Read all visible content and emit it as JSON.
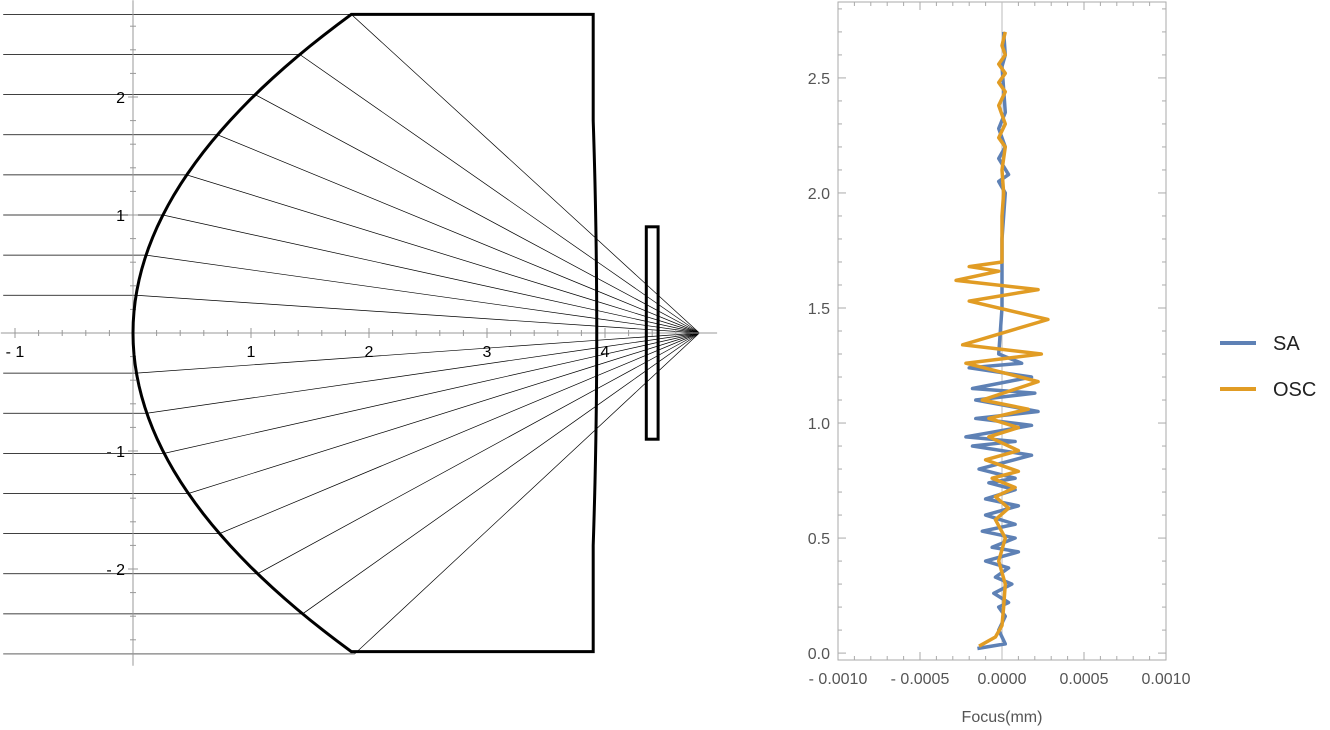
{
  "chart_data": [
    {
      "type": "diagram",
      "xlim": [
        -1,
        4.8
      ],
      "ylim": [
        -2.7,
        2.7
      ],
      "x_ticks": [
        {
          "value": -1,
          "label": "- 1"
        },
        {
          "value": 1,
          "label": "1"
        },
        {
          "value": 2,
          "label": "2"
        },
        {
          "value": 3,
          "label": "3"
        },
        {
          "value": 4,
          "label": "4"
        }
      ],
      "y_ticks": [
        {
          "value": 2,
          "label": "2"
        },
        {
          "value": 1,
          "label": "1"
        },
        {
          "value": -1,
          "label": "- 1"
        },
        {
          "value": -2,
          "label": "- 2"
        }
      ],
      "lens": {
        "front_vertex_x": 0,
        "front_edge_x": 1.85,
        "back_x": 3.9,
        "half_height": 2.7
      },
      "plate": {
        "x_min": 4.35,
        "x_max": 4.45,
        "y_min": -0.9,
        "y_max": 0.9
      },
      "focus": {
        "x": 4.8,
        "y": 0
      },
      "ray_heights": [
        2.7,
        2.36,
        2.02,
        1.68,
        1.34,
        1.0,
        0.66,
        0.32,
        -0.34,
        -0.68,
        -1.02,
        -1.36,
        -1.7,
        -2.04,
        -2.38,
        -2.72
      ]
    },
    {
      "type": "line",
      "xlabel": "Focus(mm)",
      "xlim": [
        -0.001,
        0.001
      ],
      "ylim": [
        -0.03,
        2.83
      ],
      "x_ticks": [
        {
          "value": -0.001,
          "label": "- 0.0010"
        },
        {
          "value": -0.0005,
          "label": "- 0.0005"
        },
        {
          "value": 0,
          "label": "0.0000"
        },
        {
          "value": 0.0005,
          "label": "0.0005"
        },
        {
          "value": 0.001,
          "label": "0.0010"
        }
      ],
      "y_ticks": [
        {
          "value": 0,
          "label": "0.0"
        },
        {
          "value": 0.5,
          "label": "0.5"
        },
        {
          "value": 1,
          "label": "1.0"
        },
        {
          "value": 1.5,
          "label": "1.5"
        },
        {
          "value": 2,
          "label": "2.0"
        },
        {
          "value": 2.5,
          "label": "2.5"
        }
      ],
      "legend_position": "right",
      "series": [
        {
          "name": "SA",
          "color": "#5E81B5",
          "points": [
            [
              -0.00015,
              0.02
            ],
            [
              2e-05,
              0.04
            ],
            [
              -2e-05,
              0.1
            ],
            [
              2e-05,
              0.16
            ],
            [
              -2e-05,
              0.2
            ],
            [
              4e-05,
              0.22
            ],
            [
              -5e-05,
              0.26
            ],
            [
              6e-05,
              0.3
            ],
            [
              -4e-05,
              0.33
            ],
            [
              4e-05,
              0.37
            ],
            [
              -0.0001,
              0.4
            ],
            [
              0.0001,
              0.44
            ],
            [
              -6e-05,
              0.46
            ],
            [
              8e-05,
              0.5
            ],
            [
              -0.00012,
              0.53
            ],
            [
              8e-05,
              0.56
            ],
            [
              -0.0001,
              0.6
            ],
            [
              0.0001,
              0.64
            ],
            [
              -0.0001,
              0.67
            ],
            [
              8e-05,
              0.71
            ],
            [
              -8e-05,
              0.74
            ],
            [
              8e-05,
              0.76
            ],
            [
              -0.00014,
              0.8
            ],
            [
              0.00018,
              0.86
            ],
            [
              -0.00018,
              0.9
            ],
            [
              8e-05,
              0.92
            ],
            [
              -0.00022,
              0.94
            ],
            [
              0.00018,
              0.99
            ],
            [
              -0.00016,
              1.02
            ],
            [
              0.00022,
              1.05
            ],
            [
              -0.00016,
              1.1
            ],
            [
              0.0002,
              1.13
            ],
            [
              -0.00018,
              1.15
            ],
            [
              0.00018,
              1.2
            ],
            [
              -0.0002,
              1.24
            ],
            [
              0.00012,
              1.26
            ],
            [
              -2e-05,
              1.3
            ],
            [
              0.0,
              1.5
            ],
            [
              0.0,
              1.8
            ],
            [
              2e-05,
              2.0
            ],
            [
              -2e-05,
              2.05
            ],
            [
              4e-05,
              2.08
            ],
            [
              -2e-05,
              2.15
            ],
            [
              2e-05,
              2.2
            ],
            [
              -2e-05,
              2.28
            ],
            [
              2e-05,
              2.35
            ],
            [
              1e-05,
              2.45
            ],
            [
              0.0,
              2.55
            ],
            [
              2e-05,
              2.6
            ],
            [
              1e-05,
              2.7
            ]
          ]
        },
        {
          "name": "OSC",
          "color": "#E19C24",
          "points": [
            [
              -0.00014,
              0.03
            ],
            [
              -4e-05,
              0.07
            ],
            [
              0.0,
              0.12
            ],
            [
              1e-05,
              0.2
            ],
            [
              2e-05,
              0.3
            ],
            [
              -2e-05,
              0.4
            ],
            [
              2e-05,
              0.5
            ],
            [
              -4e-05,
              0.58
            ],
            [
              4e-05,
              0.63
            ],
            [
              -4e-05,
              0.68
            ],
            [
              8e-05,
              0.72
            ],
            [
              -6e-05,
              0.76
            ],
            [
              0.0001,
              0.79
            ],
            [
              -0.0001,
              0.84
            ],
            [
              0.0001,
              0.88
            ],
            [
              -8e-05,
              0.94
            ],
            [
              0.0001,
              0.98
            ],
            [
              -8e-05,
              1.02
            ],
            [
              0.00016,
              1.06
            ],
            [
              -0.00012,
              1.1
            ],
            [
              0.00022,
              1.18
            ],
            [
              -0.00022,
              1.26
            ],
            [
              0.00024,
              1.3
            ],
            [
              -0.00024,
              1.34
            ],
            [
              0.00028,
              1.45
            ],
            [
              -0.0002,
              1.53
            ],
            [
              0.00022,
              1.58
            ],
            [
              -0.00028,
              1.62
            ],
            [
              -2e-05,
              1.66
            ],
            [
              -0.0002,
              1.68
            ],
            [
              0.0,
              1.7
            ],
            [
              0.0,
              1.9
            ],
            [
              1e-05,
              2.0
            ],
            [
              0.0,
              2.1
            ],
            [
              2e-05,
              2.2
            ],
            [
              -2e-05,
              2.24
            ],
            [
              2e-05,
              2.3
            ],
            [
              -2e-05,
              2.38
            ],
            [
              2e-05,
              2.44
            ],
            [
              -2e-05,
              2.48
            ],
            [
              2e-05,
              2.52
            ],
            [
              -2e-05,
              2.56
            ],
            [
              2e-05,
              2.6
            ],
            [
              0.0,
              2.64
            ],
            [
              2e-05,
              2.7
            ]
          ]
        }
      ]
    }
  ]
}
